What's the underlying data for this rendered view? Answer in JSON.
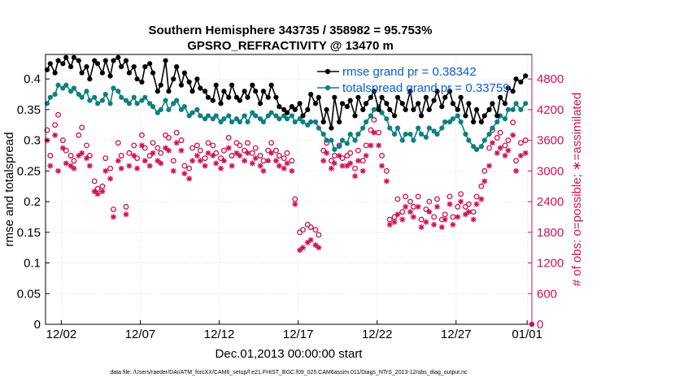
{
  "colors": {
    "rmse": "#000000",
    "spread": "#0f7f7f",
    "obs": "#cc1155",
    "legend_text": "#0a5bd8",
    "grid": "#cfcfcf"
  },
  "chart_data": {
    "type": "line",
    "title": "Southern Hemisphere 343735 / 358982 = 95.753%",
    "subtitle": "GPSRO_REFRACTIVITY @ 13470 m",
    "xlabel": "Dec.01,2013 00:00:00 start",
    "ylabel": "rmse and totalspread",
    "ylabel_right": "# of obs: o=possible; ∗=assimilated",
    "footnote": "data file: /Users/raeder/DAI/ATM_forcXX/CAM6_setup/f.e21.FHIST_BGC.f09_025.CAM6assim.011/Diags_NTrS_2013-12/obs_diag_output.nc",
    "x_unit": "days since Dec.01,2013 00:00:00",
    "xlim": [
      0.5,
      31.3
    ],
    "x_ticks": [
      {
        "value": 1.5,
        "label": "12/02"
      },
      {
        "value": 6.5,
        "label": "12/07"
      },
      {
        "value": 11.5,
        "label": "12/12"
      },
      {
        "value": 16.5,
        "label": "12/17"
      },
      {
        "value": 21.5,
        "label": "12/22"
      },
      {
        "value": 26.5,
        "label": "12/27"
      },
      {
        "value": 31.0,
        "label": "01/01"
      }
    ],
    "ylim": [
      0,
      0.44
    ],
    "y_ticks": [
      {
        "value": 0,
        "label": "0"
      },
      {
        "value": 0.05,
        "label": "0.05"
      },
      {
        "value": 0.1,
        "label": "0.1"
      },
      {
        "value": 0.15,
        "label": "0.15"
      },
      {
        "value": 0.2,
        "label": "0.2"
      },
      {
        "value": 0.25,
        "label": "0.25"
      },
      {
        "value": 0.3,
        "label": "0.3"
      },
      {
        "value": 0.35,
        "label": "0.35"
      },
      {
        "value": 0.4,
        "label": "0.4"
      }
    ],
    "ylim_right": [
      0,
      5280
    ],
    "y_ticks_right": [
      {
        "value": 0,
        "label": "0"
      },
      {
        "value": 600,
        "label": "600"
      },
      {
        "value": 1200,
        "label": "1200"
      },
      {
        "value": 1800,
        "label": "1800"
      },
      {
        "value": 2400,
        "label": "2400"
      },
      {
        "value": 3000,
        "label": "3000"
      },
      {
        "value": 3600,
        "label": "3600"
      },
      {
        "value": 4200,
        "label": "4200"
      },
      {
        "value": 4800,
        "label": "4800"
      }
    ],
    "grid": true,
    "legend_position": "top-right",
    "series": [
      {
        "name": "rmse grand pr = 0.38342",
        "axis": "left",
        "marker": "filled-circle-line",
        "x": [
          0.6,
          0.8,
          1.1,
          1.3,
          1.6,
          1.8,
          2.1,
          2.3,
          2.6,
          2.8,
          3.1,
          3.3,
          3.6,
          3.8,
          4.1,
          4.3,
          4.6,
          4.8,
          5.1,
          5.3,
          5.6,
          5.8,
          6.1,
          6.3,
          6.6,
          6.8,
          7.1,
          7.3,
          7.6,
          7.8,
          8.1,
          8.3,
          8.6,
          8.8,
          9.1,
          9.3,
          9.6,
          9.8,
          10.1,
          10.3,
          10.6,
          10.8,
          11.1,
          11.3,
          11.6,
          11.8,
          12.1,
          12.3,
          12.6,
          12.8,
          13.1,
          13.3,
          13.6,
          13.8,
          14.1,
          14.3,
          14.6,
          14.8,
          15.1,
          15.3,
          15.6,
          15.8,
          16.1,
          16.3,
          16.6,
          16.8,
          17.1,
          17.3,
          17.6,
          17.8,
          18.1,
          18.3,
          18.6,
          18.8,
          19.1,
          19.3,
          19.6,
          19.8,
          20.1,
          20.3,
          20.6,
          20.8,
          21.1,
          21.3,
          21.6,
          21.8,
          22.1,
          22.3,
          22.6,
          22.8,
          23.1,
          23.3,
          23.6,
          23.8,
          24.1,
          24.3,
          24.6,
          24.8,
          25.1,
          25.3,
          25.6,
          25.8,
          26.1,
          26.3,
          26.6,
          26.8,
          27.1,
          27.3,
          27.6,
          27.8,
          28.1,
          28.3,
          28.6,
          28.8,
          29.1,
          29.3,
          29.6,
          29.8,
          30.1,
          30.3,
          30.6,
          30.9
        ],
        "values": [
          0.415,
          0.425,
          0.41,
          0.43,
          0.425,
          0.435,
          0.42,
          0.435,
          0.43,
          0.41,
          0.42,
          0.4,
          0.43,
          0.425,
          0.41,
          0.43,
          0.405,
          0.43,
          0.435,
          0.42,
          0.43,
          0.41,
          0.42,
          0.4,
          0.395,
          0.42,
          0.425,
          0.41,
          0.38,
          0.39,
          0.43,
          0.38,
          0.4,
          0.42,
          0.39,
          0.41,
          0.395,
          0.38,
          0.4,
          0.385,
          0.38,
          0.37,
          0.365,
          0.39,
          0.36,
          0.38,
          0.37,
          0.39,
          0.37,
          0.365,
          0.38,
          0.37,
          0.39,
          0.38,
          0.36,
          0.38,
          0.37,
          0.39,
          0.37,
          0.355,
          0.35,
          0.345,
          0.355,
          0.35,
          0.36,
          0.34,
          0.35,
          0.375,
          0.36,
          0.37,
          0.33,
          0.35,
          0.32,
          0.37,
          0.33,
          0.36,
          0.355,
          0.365,
          0.34,
          0.37,
          0.35,
          0.36,
          0.37,
          0.38,
          0.35,
          0.37,
          0.36,
          0.35,
          0.34,
          0.37,
          0.36,
          0.35,
          0.38,
          0.35,
          0.36,
          0.34,
          0.37,
          0.35,
          0.365,
          0.38,
          0.355,
          0.37,
          0.38,
          0.36,
          0.35,
          0.37,
          0.34,
          0.36,
          0.33,
          0.35,
          0.33,
          0.34,
          0.35,
          0.36,
          0.34,
          0.37,
          0.36,
          0.385,
          0.38,
          0.4,
          0.395,
          0.405
        ]
      },
      {
        "name": "totalspread grand pr = 0.33759",
        "axis": "left",
        "marker": "filled-circle-line",
        "x": [
          0.6,
          0.8,
          1.1,
          1.3,
          1.6,
          1.8,
          2.1,
          2.3,
          2.6,
          2.8,
          3.1,
          3.3,
          3.6,
          3.8,
          4.1,
          4.3,
          4.6,
          4.8,
          5.1,
          5.3,
          5.6,
          5.8,
          6.1,
          6.3,
          6.6,
          6.8,
          7.1,
          7.3,
          7.6,
          7.8,
          8.1,
          8.3,
          8.6,
          8.8,
          9.1,
          9.3,
          9.6,
          9.8,
          10.1,
          10.3,
          10.6,
          10.8,
          11.1,
          11.3,
          11.6,
          11.8,
          12.1,
          12.3,
          12.6,
          12.8,
          13.1,
          13.3,
          13.6,
          13.8,
          14.1,
          14.3,
          14.6,
          14.8,
          15.1,
          15.3,
          15.6,
          15.8,
          16.1,
          16.3,
          16.6,
          16.8,
          17.1,
          17.3,
          17.6,
          17.8,
          18.1,
          18.3,
          18.6,
          18.8,
          19.1,
          19.3,
          19.6,
          19.8,
          20.1,
          20.3,
          20.6,
          20.8,
          21.1,
          21.3,
          21.6,
          21.8,
          22.1,
          22.3,
          22.6,
          22.8,
          23.1,
          23.3,
          23.6,
          23.8,
          24.1,
          24.3,
          24.6,
          24.8,
          25.1,
          25.3,
          25.6,
          25.8,
          26.1,
          26.3,
          26.6,
          26.8,
          27.1,
          27.3,
          27.6,
          27.8,
          28.1,
          28.3,
          28.6,
          28.8,
          29.1,
          29.3,
          29.6,
          29.8,
          30.1,
          30.3,
          30.6,
          30.9
        ],
        "values": [
          0.36,
          0.37,
          0.375,
          0.39,
          0.385,
          0.39,
          0.38,
          0.385,
          0.375,
          0.37,
          0.38,
          0.365,
          0.37,
          0.36,
          0.365,
          0.375,
          0.36,
          0.385,
          0.38,
          0.37,
          0.365,
          0.36,
          0.37,
          0.36,
          0.365,
          0.37,
          0.36,
          0.355,
          0.345,
          0.35,
          0.365,
          0.35,
          0.36,
          0.365,
          0.35,
          0.355,
          0.34,
          0.345,
          0.35,
          0.34,
          0.335,
          0.34,
          0.335,
          0.34,
          0.33,
          0.335,
          0.34,
          0.33,
          0.335,
          0.33,
          0.34,
          0.33,
          0.345,
          0.34,
          0.335,
          0.33,
          0.34,
          0.345,
          0.34,
          0.335,
          0.34,
          0.335,
          0.34,
          0.33,
          0.335,
          0.33,
          0.325,
          0.33,
          0.33,
          0.32,
          0.31,
          0.3,
          0.3,
          0.285,
          0.29,
          0.3,
          0.295,
          0.31,
          0.3,
          0.31,
          0.32,
          0.33,
          0.34,
          0.35,
          0.355,
          0.345,
          0.335,
          0.32,
          0.31,
          0.32,
          0.3,
          0.31,
          0.31,
          0.3,
          0.32,
          0.31,
          0.305,
          0.32,
          0.315,
          0.31,
          0.32,
          0.33,
          0.33,
          0.335,
          0.34,
          0.33,
          0.31,
          0.3,
          0.29,
          0.285,
          0.29,
          0.3,
          0.31,
          0.32,
          0.33,
          0.34,
          0.335,
          0.35,
          0.35,
          0.36,
          0.35,
          0.36
        ]
      },
      {
        "name": "possible",
        "axis": "right",
        "marker": "open-circle",
        "x": [
          0.6,
          0.8,
          1.1,
          1.3,
          1.6,
          1.8,
          2.1,
          2.3,
          2.6,
          2.8,
          3.1,
          3.3,
          3.6,
          3.8,
          4.1,
          4.3,
          4.6,
          4.8,
          5.1,
          5.3,
          5.6,
          5.8,
          6.1,
          6.3,
          6.6,
          6.8,
          7.1,
          7.3,
          7.6,
          7.8,
          8.1,
          8.3,
          8.6,
          8.8,
          9.1,
          9.3,
          9.6,
          9.8,
          10.1,
          10.3,
          10.6,
          10.8,
          11.1,
          11.3,
          11.6,
          11.8,
          12.1,
          12.3,
          12.6,
          12.8,
          13.1,
          13.3,
          13.6,
          13.8,
          14.1,
          14.3,
          14.6,
          14.8,
          15.1,
          15.3,
          15.6,
          15.8,
          16.1,
          16.3,
          16.6,
          16.8,
          17.1,
          17.3,
          17.6,
          17.8,
          18.1,
          18.3,
          18.6,
          18.8,
          19.1,
          19.3,
          19.6,
          19.8,
          20.1,
          20.3,
          20.6,
          20.8,
          21.1,
          21.3,
          21.6,
          21.8,
          22.1,
          22.3,
          22.6,
          22.8,
          23.1,
          23.3,
          23.6,
          23.8,
          24.1,
          24.3,
          24.6,
          24.8,
          25.1,
          25.3,
          25.6,
          25.8,
          26.1,
          26.3,
          26.6,
          26.8,
          27.1,
          27.3,
          27.6,
          27.8,
          28.1,
          28.3,
          28.6,
          28.8,
          29.1,
          29.3,
          29.6,
          29.8,
          30.1,
          30.3,
          30.6,
          30.9
        ],
        "values": [
          3800,
          3300,
          3900,
          4100,
          3600,
          3400,
          3300,
          3200,
          3700,
          3850,
          3500,
          3300,
          2800,
          2650,
          2700,
          3250,
          3050,
          2250,
          3550,
          3300,
          2300,
          3350,
          3500,
          3250,
          3700,
          3450,
          3300,
          3550,
          3450,
          3350,
          3700,
          3650,
          3200,
          3750,
          3600,
          3100,
          3050,
          3450,
          3500,
          3400,
          3250,
          3550,
          3500,
          3350,
          3250,
          3400,
          3650,
          3300,
          3550,
          3500,
          3400,
          3550,
          3350,
          3450,
          3300,
          3200,
          3400,
          3550,
          3400,
          3300,
          3250,
          3350,
          3200,
          2450,
          1800,
          1850,
          1950,
          1900,
          1850,
          1750,
          3400,
          3550,
          3200,
          3300,
          3500,
          3250,
          3300,
          3350,
          3050,
          3400,
          3200,
          3500,
          3800,
          4000,
          3750,
          3300,
          3000,
          2050,
          2100,
          2450,
          2200,
          2500,
          2400,
          2300,
          2500,
          2050,
          2250,
          2400,
          2100,
          2450,
          2050,
          2150,
          2500,
          2100,
          2300,
          2550,
          2300,
          2350,
          2200,
          2500,
          2700,
          3000,
          3450,
          3800,
          3650,
          3750,
          3500,
          3600,
          3950,
          3200,
          3550,
          3600
        ]
      },
      {
        "name": "assimilated",
        "axis": "right",
        "marker": "asterisk",
        "x": [
          0.6,
          0.8,
          1.1,
          1.3,
          1.6,
          1.8,
          2.1,
          2.3,
          2.6,
          2.8,
          3.1,
          3.3,
          3.6,
          3.8,
          4.1,
          4.3,
          4.6,
          4.8,
          5.1,
          5.3,
          5.6,
          5.8,
          6.1,
          6.3,
          6.6,
          6.8,
          7.1,
          7.3,
          7.6,
          7.8,
          8.1,
          8.3,
          8.6,
          8.8,
          9.1,
          9.3,
          9.6,
          9.8,
          10.1,
          10.3,
          10.6,
          10.8,
          11.1,
          11.3,
          11.6,
          11.8,
          12.1,
          12.3,
          12.6,
          12.8,
          13.1,
          13.3,
          13.6,
          13.8,
          14.1,
          14.3,
          14.6,
          14.8,
          15.1,
          15.3,
          15.6,
          15.8,
          16.1,
          16.3,
          16.6,
          16.8,
          17.1,
          17.3,
          17.6,
          17.8,
          18.1,
          18.3,
          18.6,
          18.8,
          19.1,
          19.3,
          19.6,
          19.8,
          20.1,
          20.3,
          20.6,
          20.8,
          21.1,
          21.3,
          21.6,
          21.8,
          22.1,
          22.3,
          22.6,
          22.8,
          23.1,
          23.3,
          23.6,
          23.8,
          24.1,
          24.3,
          24.6,
          24.8,
          25.1,
          25.3,
          25.6,
          25.8,
          26.1,
          26.3,
          26.6,
          26.8,
          27.1,
          27.3,
          27.6,
          27.8,
          28.1,
          28.3,
          28.6,
          28.8,
          29.1,
          29.3,
          29.6,
          29.8,
          30.1,
          30.3,
          30.6,
          30.9
        ],
        "values": [
          3600,
          3100,
          3700,
          3000,
          3450,
          3150,
          3100,
          3050,
          3300,
          3350,
          3250,
          3100,
          2600,
          2550,
          2600,
          3000,
          2850,
          2100,
          3200,
          3050,
          2150,
          3100,
          3300,
          3050,
          3500,
          3200,
          3100,
          3350,
          3200,
          3150,
          3450,
          3400,
          3000,
          3550,
          3400,
          2950,
          2850,
          3200,
          3300,
          3200,
          3100,
          3350,
          3300,
          3150,
          3050,
          3200,
          3450,
          3100,
          3350,
          3300,
          3200,
          3350,
          3150,
          3250,
          3100,
          3000,
          3200,
          3350,
          3200,
          3100,
          3050,
          3150,
          3000,
          2350,
          1450,
          1500,
          1600,
          1650,
          1550,
          1500,
          3200,
          3350,
          3050,
          3150,
          3300,
          3100,
          3100,
          3150,
          2900,
          3200,
          3000,
          3300,
          3500,
          3750,
          3500,
          3100,
          2800,
          1950,
          2000,
          2150,
          2050,
          2300,
          2200,
          2100,
          2300,
          1900,
          2000,
          2200,
          1950,
          2300,
          1900,
          2050,
          2350,
          1950,
          2100,
          2400,
          2150,
          2200,
          2050,
          2350,
          2450,
          2800,
          3100,
          3550,
          3350,
          3450,
          3300,
          3400,
          3700,
          3000,
          3300,
          3350
        ]
      }
    ]
  }
}
